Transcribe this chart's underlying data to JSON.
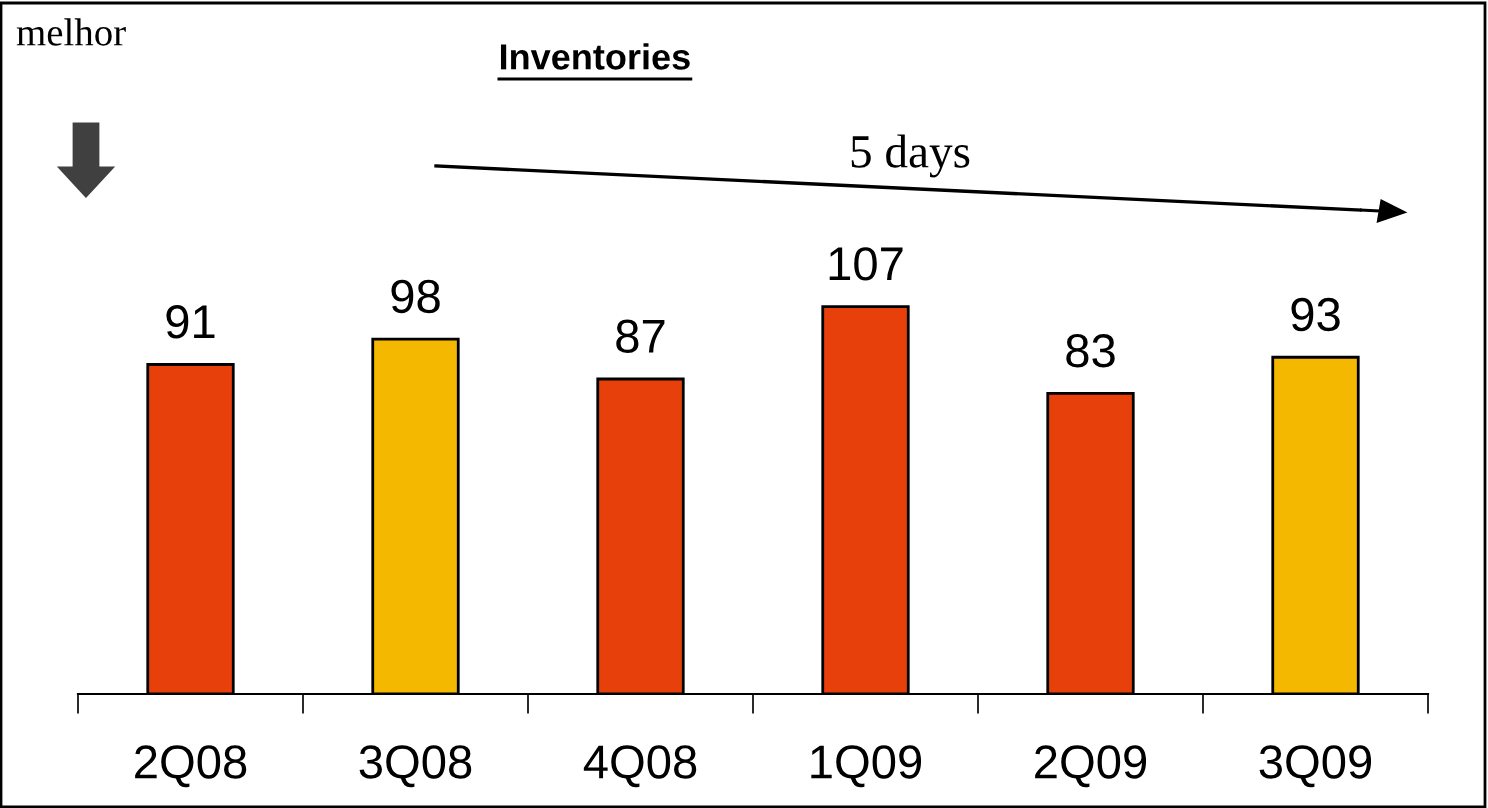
{
  "chart_data": {
    "type": "bar",
    "title": "Inventories",
    "categories": [
      "2Q08",
      "3Q08",
      "4Q08",
      "1Q09",
      "2Q09",
      "3Q09"
    ],
    "values": [
      91,
      98,
      87,
      107,
      83,
      93
    ],
    "colors": [
      "#e8400a",
      "#f5b800",
      "#e8400a",
      "#e8400a",
      "#e8400a",
      "#f5b800"
    ],
    "data_labels": true,
    "grid": false,
    "legend": false,
    "annotations": [
      "melhor",
      "5 days"
    ]
  }
}
